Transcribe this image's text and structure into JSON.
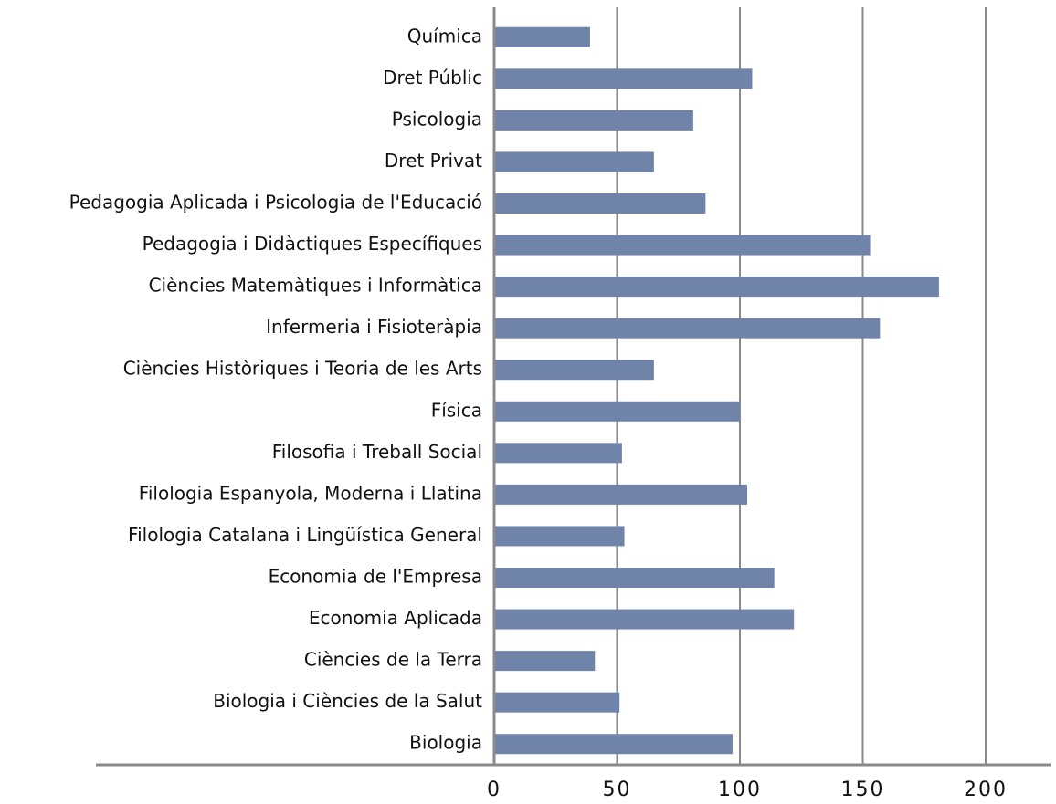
{
  "chart_data": {
    "type": "bar",
    "orientation": "horizontal",
    "categories": [
      "Química",
      "Dret Públic",
      "Psicologia",
      "Dret Privat",
      "Pedagogia Aplicada i Psicologia de l'Educació",
      "Pedagogia i Didàctiques Específiques",
      "Ciències Matemàtiques i Informàtica",
      "Infermeria i Fisioteràpia",
      "Ciències Històriques i Teoria de les Arts",
      "Física",
      "Filosofia i Treball Social",
      "Filologia Espanyola, Moderna i Llatina",
      "Filologia Catalana i Lingüística General",
      "Economia de l'Empresa",
      "Economia Aplicada",
      "Ciències de la Terra",
      "Biologia i Ciències de la Salut",
      "Biologia"
    ],
    "values": [
      39,
      105,
      81,
      65,
      86,
      153,
      181,
      157,
      65,
      100,
      52,
      103,
      53,
      114,
      122,
      41,
      51,
      97
    ],
    "color": "#7083a8",
    "xlim": [
      0,
      200
    ],
    "xticks": [
      0,
      50,
      100,
      150,
      200
    ],
    "grid": true
  }
}
